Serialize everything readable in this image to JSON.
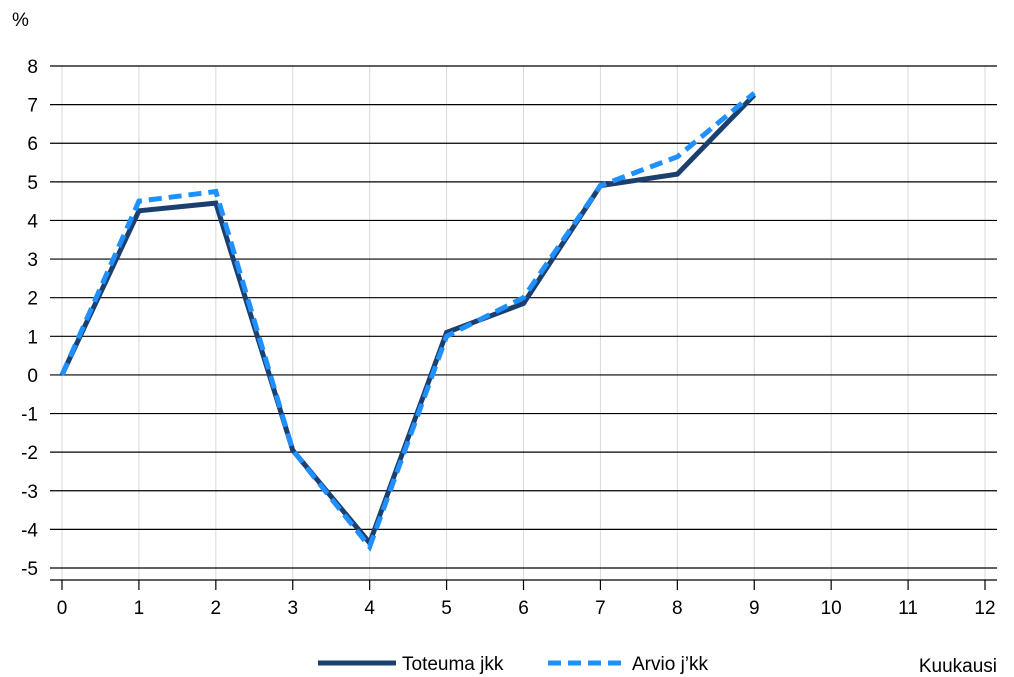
{
  "chart_data": {
    "type": "line",
    "ylabel": "%",
    "xlabel": "Kuukausi",
    "x": [
      0,
      1,
      2,
      3,
      4,
      5,
      6,
      7,
      8,
      9
    ],
    "series": [
      {
        "name": "Toteuma jkk",
        "values": [
          0,
          4.25,
          4.45,
          -1.95,
          -4.35,
          1.1,
          1.85,
          4.9,
          5.2,
          7.25
        ],
        "color": "#1b3f6e",
        "style": "solid"
      },
      {
        "name": "Arvio j’kk",
        "values": [
          0,
          4.5,
          4.75,
          -1.95,
          -4.45,
          1.0,
          2.0,
          4.9,
          5.65,
          7.3
        ],
        "color": "#1e90ff",
        "style": "dashed"
      }
    ],
    "xlim": [
      0,
      12
    ],
    "ylim": [
      -5,
      8
    ],
    "xticks": [
      "0",
      "1",
      "2",
      "3",
      "4",
      "5",
      "6",
      "7",
      "8",
      "9",
      "10",
      "11",
      "12"
    ],
    "yticks": [
      "8",
      "7",
      "6",
      "5",
      "4",
      "3",
      "2",
      "1",
      "0",
      "-1",
      "-2",
      "-3",
      "-4",
      "-5"
    ],
    "grid": {
      "horizontal": true,
      "vertical": true
    },
    "legend": "bottom-center"
  }
}
